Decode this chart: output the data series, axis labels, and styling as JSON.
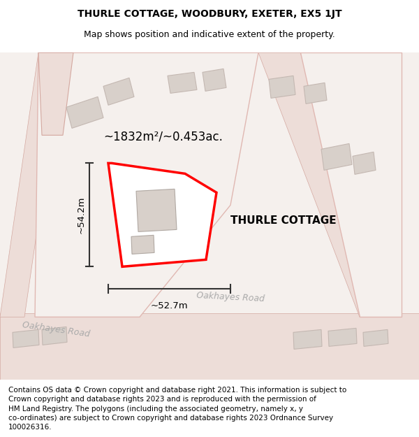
{
  "title": "THURLE COTTAGE, WOODBURY, EXETER, EX5 1JT",
  "subtitle": "Map shows position and indicative extent of the property.",
  "footer": "Contains OS data © Crown copyright and database right 2021. This information is subject to Crown copyright and database rights 2023 and is reproduced with the permission of HM Land Registry. The polygons (including the associated geometry, namely x, y co-ordinates) are subject to Crown copyright and database rights 2023 Ordnance Survey 100026316.",
  "property_label": "THURLE COTTAGE",
  "area_label": "~1832m²/~0.453ac.",
  "width_label": "~52.7m",
  "height_label": "~54.2m",
  "road_label_1": "Oakhayes Road",
  "road_label_2": "Oakhayes Road",
  "map_bg": "#f5f0ed",
  "road_fill": "#edddd8",
  "road_edge": "#d4a8a0",
  "building_fill": "#d8d0ca",
  "building_edge": "#c4b8b2",
  "lot_fill": "#f5f0ed",
  "lot_edge": "#e0b8b2",
  "property_edge": "#ff0000",
  "property_fill": "#ffffff",
  "dim_color": "#333333",
  "road_text_color": "#aaaaaa",
  "title_fontsize": 10,
  "subtitle_fontsize": 9,
  "footer_fontsize": 7.5
}
